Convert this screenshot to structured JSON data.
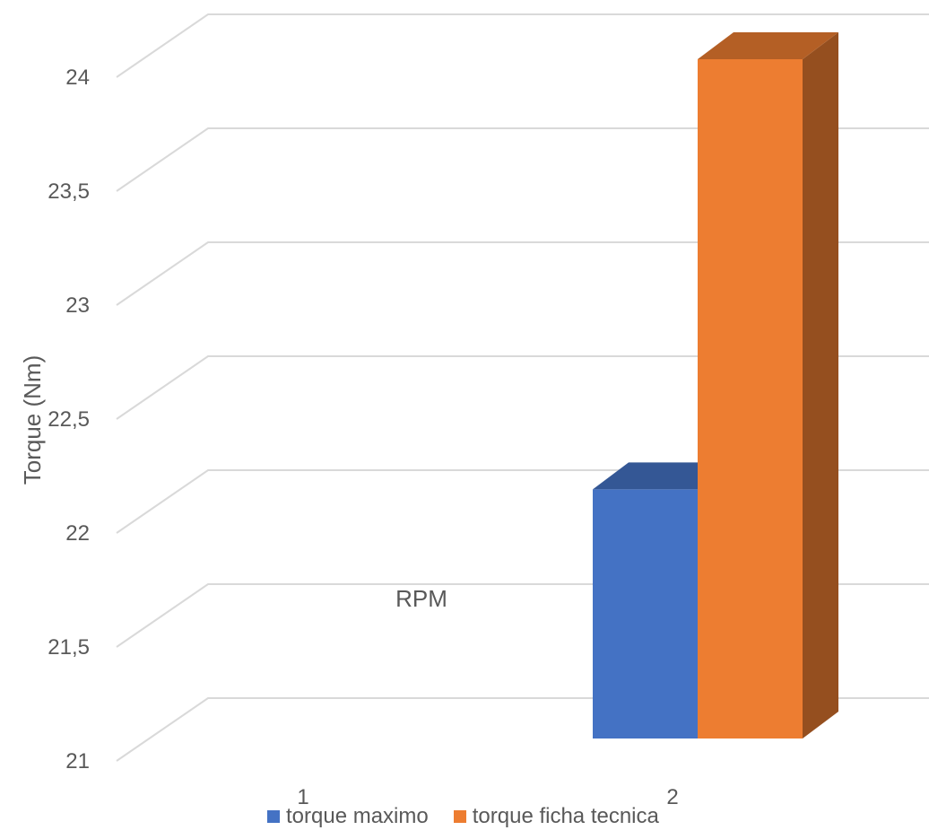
{
  "chart_data": {
    "type": "bar",
    "style": "3d-clustered-column",
    "categories": [
      "1",
      "2"
    ],
    "series": [
      {
        "name": "torque maximo",
        "values": [
          null,
          22.1
        ],
        "color": "#4472C4"
      },
      {
        "name": "torque ficha tecnica",
        "values": [
          null,
          24.0
        ],
        "color": "#ED7D31"
      }
    ],
    "yticks": [
      "21",
      "21,5",
      "22",
      "22,5",
      "23",
      "23,5",
      "24"
    ],
    "ytick_values": [
      21,
      21.5,
      22,
      22.5,
      23,
      23.5,
      24
    ],
    "ylim": [
      21,
      24
    ],
    "ylabel": "Torque (Nm)",
    "xlabel": "RPM",
    "grid": true,
    "legend_position": "bottom"
  }
}
